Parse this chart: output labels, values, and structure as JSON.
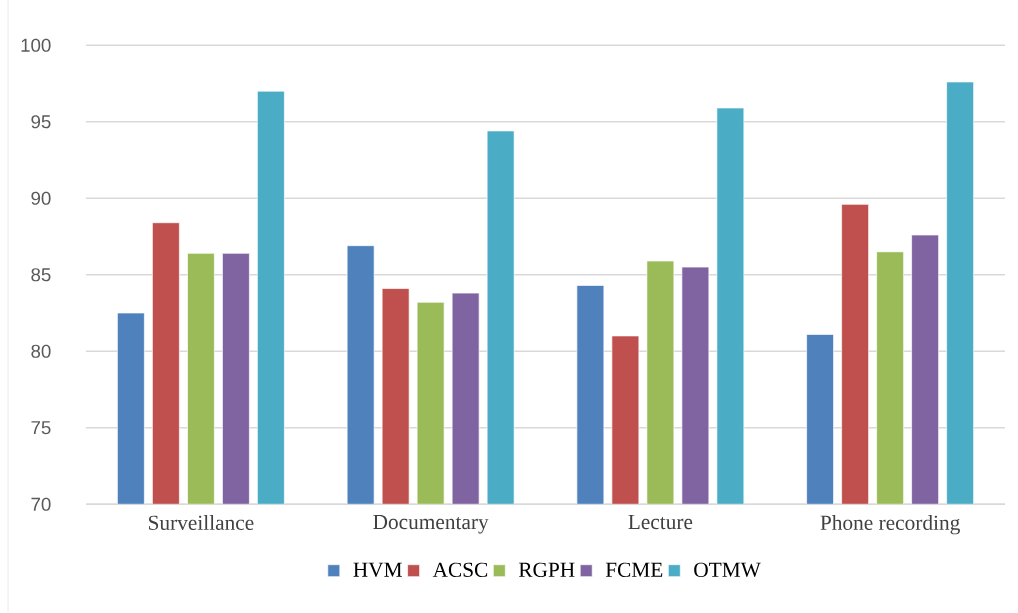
{
  "chart_data": {
    "type": "bar",
    "categories": [
      "Surveillance",
      "Documentary",
      "Lecture",
      "Phone recording"
    ],
    "series": [
      {
        "name": "HVM",
        "color": "#4f81bd",
        "values": [
          82.5,
          86.9,
          84.3,
          81.1
        ]
      },
      {
        "name": "ACSC",
        "color": "#c0504d",
        "values": [
          88.4,
          84.1,
          81.0,
          89.6
        ]
      },
      {
        "name": "RGPH",
        "color": "#9bbb59",
        "values": [
          86.4,
          83.2,
          85.9,
          86.5
        ]
      },
      {
        "name": "FCME",
        "color": "#8064a2",
        "values": [
          86.4,
          83.8,
          85.5,
          87.6
        ]
      },
      {
        "name": "OTMW",
        "color": "#4bacc6",
        "values": [
          97.0,
          94.4,
          95.9,
          97.6
        ]
      }
    ],
    "ylim": [
      70,
      100
    ],
    "yticks": [
      70,
      75,
      80,
      85,
      90,
      95,
      100
    ],
    "grid": "y",
    "legend": "bottom"
  }
}
